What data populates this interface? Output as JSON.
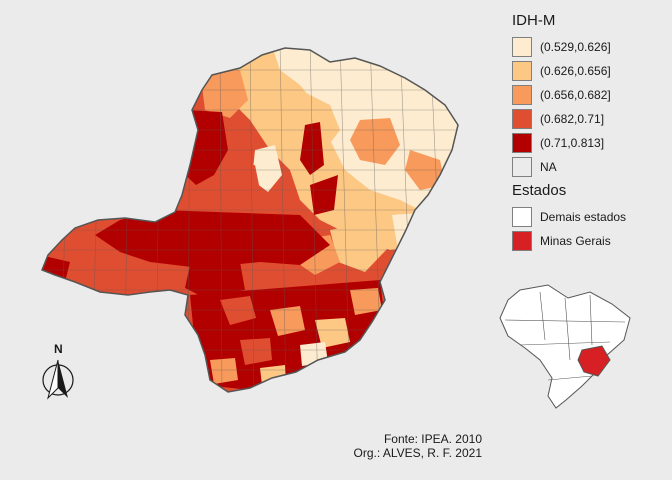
{
  "legend_idh": {
    "title": "IDH-M",
    "items": [
      {
        "label": "(0.529,0.626]",
        "color": "#fdeccf"
      },
      {
        "label": "(0.626,0.656]",
        "color": "#fcc884"
      },
      {
        "label": "(0.656,0.682]",
        "color": "#f89a5b"
      },
      {
        "label": "(0.682,0.71]",
        "color": "#e04e31"
      },
      {
        "label": "(0.71,0.813]",
        "color": "#b20000"
      },
      {
        "label": "NA",
        "color": "#ebebeb"
      }
    ]
  },
  "legend_estados": {
    "title": "Estados",
    "items": [
      {
        "label": "Demais estados",
        "color": "#ffffff"
      },
      {
        "label": "Minas Gerais",
        "color": "#d62024"
      }
    ]
  },
  "north_arrow": {
    "label": "N"
  },
  "caption": {
    "source": "Fonte: IPEA. 2010",
    "author": "Org.: ALVES, R. F. 2021"
  }
}
